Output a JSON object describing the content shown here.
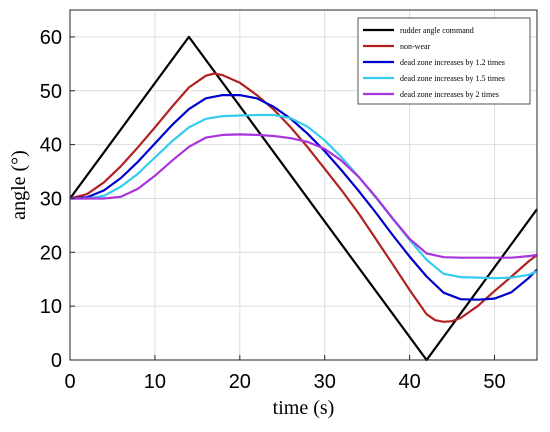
{
  "chart_data": {
    "type": "line",
    "xlabel": "time (s)",
    "ylabel": "angle (°)",
    "xlim": [
      0,
      55
    ],
    "ylim": [
      0,
      65
    ],
    "xticks": [
      0,
      10,
      20,
      30,
      40,
      50
    ],
    "yticks": [
      0,
      10,
      20,
      30,
      40,
      50,
      60
    ],
    "grid": true,
    "legend": {
      "placement": "top-right"
    },
    "series": [
      {
        "name": "rudder angle command",
        "color": "#000000",
        "x": [
          0,
          14,
          42,
          55
        ],
        "y": [
          30,
          60,
          0,
          28
        ]
      },
      {
        "name": "non-wear",
        "color": "#b22222",
        "x": [
          0,
          2,
          4,
          6,
          8,
          10,
          12,
          14,
          16,
          17,
          18,
          20,
          22,
          24,
          26,
          28,
          30,
          32,
          34,
          36,
          38,
          40,
          42,
          43,
          44,
          45,
          46,
          48,
          50,
          52,
          54,
          55
        ],
        "y": [
          30,
          30.8,
          33,
          36,
          39.5,
          43.2,
          47,
          50.6,
          52.8,
          53.2,
          52.9,
          51.5,
          49.2,
          46.5,
          43.2,
          39.5,
          35.5,
          31.5,
          27.2,
          22.5,
          17.8,
          13,
          8.5,
          7.4,
          7.1,
          7.2,
          7.8,
          10,
          12.8,
          15.5,
          18.3,
          19.5
        ]
      },
      {
        "name": "dead zone increases by 1.2 times",
        "color": "#0000cc",
        "x": [
          0,
          2,
          4,
          6,
          8,
          10,
          12,
          14,
          16,
          18,
          20,
          22,
          24,
          26,
          28,
          30,
          32,
          34,
          36,
          38,
          40,
          42,
          44,
          46,
          48,
          50,
          52,
          54,
          55
        ],
        "y": [
          30,
          30.2,
          31.5,
          33.8,
          36.8,
          40.2,
          43.6,
          46.6,
          48.6,
          49.2,
          49.2,
          48.6,
          47,
          44.8,
          42,
          38.8,
          35.2,
          31.4,
          27.4,
          23.2,
          19.2,
          15.5,
          12.5,
          11.3,
          11.2,
          11.4,
          12.6,
          15.2,
          16.8
        ]
      },
      {
        "name": "dead zone increases by 1.5 times",
        "color": "#33ccee",
        "x": [
          0,
          2,
          4,
          6,
          8,
          10,
          12,
          14,
          16,
          18,
          20,
          22,
          24,
          26,
          28,
          30,
          32,
          34,
          36,
          38,
          40,
          42,
          44,
          46,
          48,
          50,
          52,
          54,
          55
        ],
        "y": [
          30,
          30,
          30.5,
          32.2,
          34.6,
          37.6,
          40.6,
          43.2,
          44.8,
          45.3,
          45.4,
          45.5,
          45.5,
          44.9,
          43.3,
          40.8,
          37.6,
          34,
          30.2,
          26.2,
          22.3,
          18.6,
          16,
          15.4,
          15.3,
          15.2,
          15.3,
          15.8,
          16.5
        ]
      },
      {
        "name": "dead zone increases by 2 times",
        "color": "#aa33dd",
        "x": [
          0,
          2,
          4,
          6,
          8,
          10,
          12,
          14,
          16,
          18,
          20,
          22,
          24,
          26,
          28,
          30,
          32,
          34,
          36,
          38,
          40,
          42,
          44,
          46,
          48,
          50,
          52,
          54,
          55
        ],
        "y": [
          30,
          30,
          30,
          30.3,
          31.8,
          34.2,
          37,
          39.6,
          41.3,
          41.8,
          41.9,
          41.8,
          41.6,
          41.2,
          40.5,
          39.2,
          37,
          34,
          30.3,
          26.3,
          22.5,
          19.8,
          19.1,
          19,
          19,
          19,
          19,
          19.3,
          19.5
        ]
      }
    ]
  }
}
